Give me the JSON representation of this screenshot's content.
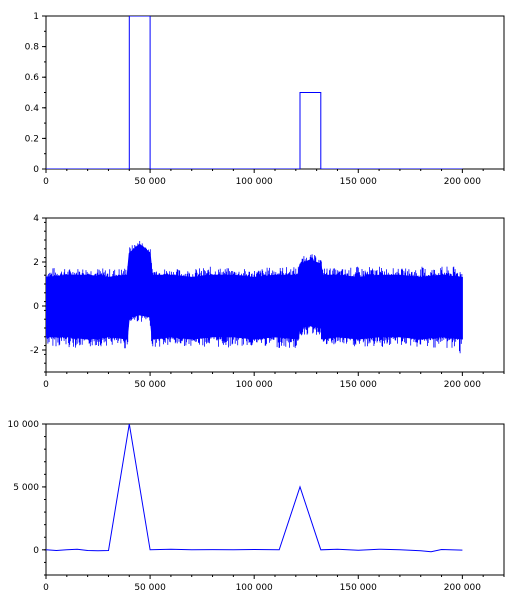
{
  "colors": {
    "line": "#0000ff",
    "axis": "#000000",
    "background": "#ffffff"
  },
  "chart_data": [
    {
      "type": "line",
      "title": "",
      "xlabel": "",
      "ylabel": "",
      "grid": false,
      "xlim": [
        0,
        220000
      ],
      "ylim": [
        0,
        1
      ],
      "xticks": [
        0,
        50000,
        100000,
        150000,
        200000
      ],
      "xtick_labels": [
        "0",
        "50 000",
        "100 000",
        "150 000",
        "200 000"
      ],
      "yticks": [
        0,
        0.2,
        0.4,
        0.6,
        0.8,
        1
      ],
      "ytick_labels": [
        "0",
        "0.2",
        "0.4",
        "0.6",
        "0.8",
        "1"
      ],
      "series": [
        {
          "color": "#0000ff",
          "x": [
            0,
            40000,
            40000,
            50000,
            50000,
            122000,
            122000,
            132000,
            132000,
            200000
          ],
          "y": [
            0,
            0,
            1,
            1,
            0,
            0,
            0.5,
            0.5,
            0,
            0
          ]
        }
      ]
    },
    {
      "type": "area",
      "title": "",
      "xlabel": "",
      "ylabel": "",
      "grid": false,
      "xlim": [
        0,
        220000
      ],
      "ylim": [
        -3,
        4
      ],
      "xticks": [
        0,
        50000,
        100000,
        150000,
        200000
      ],
      "xtick_labels": [
        "0",
        "50 000",
        "100 000",
        "150 000",
        "200 000"
      ],
      "yticks": [
        -2,
        0,
        2,
        4
      ],
      "ytick_labels": [
        "-2",
        "0",
        "2",
        "4"
      ],
      "series": [
        {
          "color": "#0000ff",
          "x": [
            0,
            10000,
            20000,
            30000,
            39000,
            40000,
            45000,
            50000,
            51000,
            60000,
            70000,
            80000,
            90000,
            100000,
            110000,
            121000,
            122000,
            127000,
            132000,
            133000,
            140000,
            150000,
            160000,
            170000,
            180000,
            190000,
            200000
          ],
          "upper": [
            1.3,
            1.4,
            1.4,
            1.3,
            1.4,
            2.4,
            2.8,
            2.4,
            1.4,
            1.4,
            1.3,
            1.4,
            1.4,
            1.3,
            1.4,
            1.4,
            1.9,
            2.1,
            1.9,
            1.4,
            1.4,
            1.3,
            1.4,
            1.4,
            1.3,
            1.4,
            1.3
          ],
          "lower": [
            -1.4,
            -1.4,
            -1.5,
            -1.4,
            -1.5,
            -0.5,
            -0.4,
            -0.5,
            -1.5,
            -1.4,
            -1.5,
            -1.4,
            -1.4,
            -1.5,
            -1.4,
            -1.5,
            -1.0,
            -0.9,
            -1.0,
            -1.5,
            -1.4,
            -1.5,
            -1.4,
            -1.4,
            -1.5,
            -1.4,
            -1.5
          ],
          "peak_upper": [
            1.8,
            1.7,
            1.8,
            1.7,
            1.8,
            2.7,
            3.0,
            2.7,
            1.8,
            1.7,
            1.7,
            1.8,
            1.7,
            1.7,
            1.8,
            1.8,
            2.2,
            2.4,
            2.2,
            1.8,
            1.7,
            1.8,
            1.8,
            1.7,
            1.8,
            1.8,
            1.8
          ],
          "peak_lower": [
            -1.8,
            -1.9,
            -1.9,
            -1.8,
            -2.0,
            -0.9,
            -0.7,
            -0.9,
            -1.9,
            -1.9,
            -1.8,
            -1.9,
            -1.9,
            -1.8,
            -1.9,
            -2.0,
            -1.4,
            -1.3,
            -1.4,
            -1.9,
            -1.8,
            -1.9,
            -1.9,
            -1.8,
            -1.9,
            -1.9,
            -2.2
          ]
        }
      ]
    },
    {
      "type": "line",
      "title": "",
      "xlabel": "",
      "ylabel": "",
      "grid": false,
      "xlim": [
        0,
        220000
      ],
      "ylim": [
        -2000,
        10000
      ],
      "xticks": [
        0,
        50000,
        100000,
        150000,
        200000
      ],
      "xtick_labels": [
        "0",
        "50 000",
        "100 000",
        "150 000",
        "200 000"
      ],
      "yticks": [
        0,
        5000,
        10000
      ],
      "ytick_labels": [
        "0",
        "5 000",
        "10 000"
      ],
      "series": [
        {
          "color": "#0000ff",
          "x": [
            0,
            5000,
            10000,
            15000,
            20000,
            25000,
            30000,
            40000,
            50000,
            60000,
            70000,
            80000,
            90000,
            100000,
            112000,
            122000,
            132000,
            140000,
            150000,
            160000,
            170000,
            180000,
            185000,
            190000,
            200000
          ],
          "y": [
            0,
            -50,
            0,
            50,
            -50,
            -80,
            -50,
            10000,
            0,
            50,
            0,
            20,
            0,
            30,
            0,
            5000,
            0,
            50,
            -30,
            50,
            0,
            -80,
            -150,
            30,
            -20
          ]
        }
      ]
    }
  ]
}
